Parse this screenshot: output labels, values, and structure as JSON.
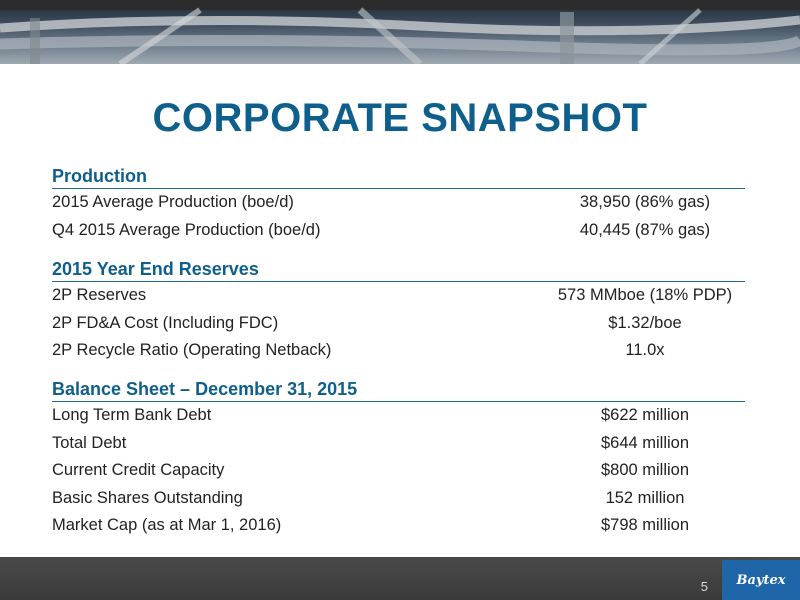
{
  "title": "CORPORATE SNAPSHOT",
  "sections": [
    {
      "heading": "Production",
      "rows": [
        {
          "label": "2015 Average Production (boe/d)",
          "value": "38,950 (86% gas)"
        },
        {
          "label": "Q4 2015 Average Production (boe/d)",
          "value": "40,445 (87% gas)"
        }
      ]
    },
    {
      "heading": "2015 Year End Reserves",
      "rows": [
        {
          "label": "2P Reserves",
          "value": "573 MMboe (18% PDP)"
        },
        {
          "label": "2P FD&A Cost (Including FDC)",
          "value": "$1.32/boe"
        },
        {
          "label": "2P Recycle Ratio (Operating Netback)",
          "value": "11.0x"
        }
      ]
    },
    {
      "heading": "Balance Sheet – December 31, 2015",
      "rows": [
        {
          "label": "Long Term Bank Debt",
          "value": "$622 million"
        },
        {
          "label": "Total Debt",
          "value": "$644 million"
        },
        {
          "label": "Current Credit Capacity",
          "value": "$800 million"
        },
        {
          "label": "Basic Shares Outstanding",
          "value": "152 million"
        },
        {
          "label": "Market Cap (as at Mar 1, 2016)",
          "value": "$798 million"
        }
      ]
    }
  ],
  "footer": {
    "page_number": "5",
    "logo_text": "Baytex",
    "logo_icon": "company-logo-icon",
    "logo_color": "#1e66a8"
  },
  "colors": {
    "accent": "#0f5f8c",
    "footer_bg": "#3f3f3f"
  }
}
